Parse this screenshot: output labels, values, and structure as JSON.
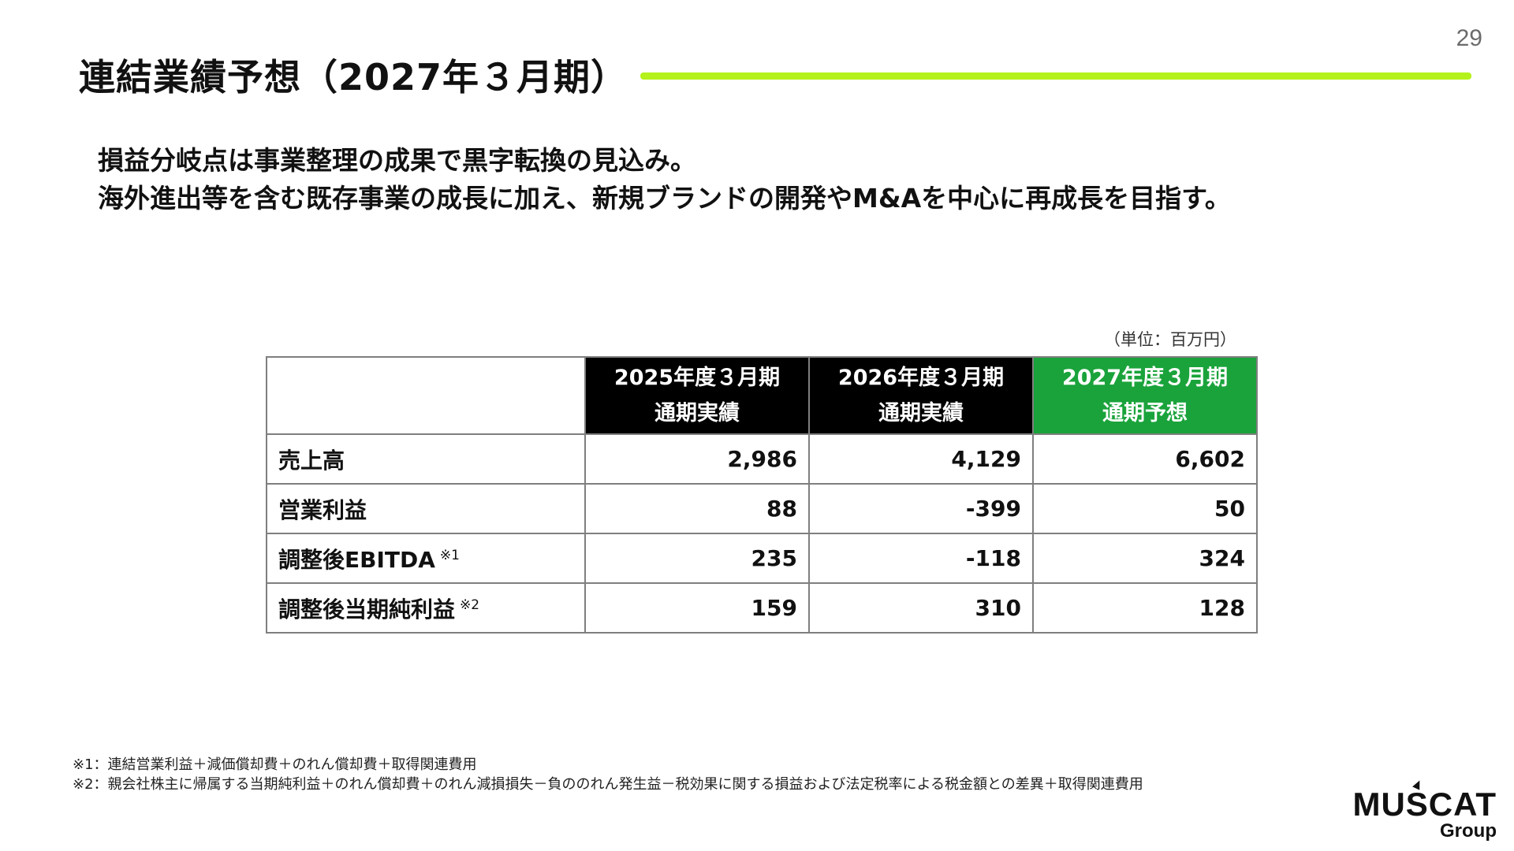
{
  "page_number": "29",
  "title": "連結業績予想（2027年３月期）",
  "lead": [
    "損益分岐点は事業整理の成果で黒字転換の見込み。",
    "海外進出等を含む既存事業の成長に加え、新規ブランドの開発やM&Aを中心に再成長を目指す。"
  ],
  "unit_label": "（単位：百万円）",
  "table": {
    "columns": [
      {
        "line1": "2025年度３月期",
        "line2": "通期実績"
      },
      {
        "line1": "2026年度３月期",
        "line2": "通期実績"
      },
      {
        "line1": "2027年度３月期",
        "line2": "通期予想"
      }
    ],
    "rows": [
      {
        "label": "売上高",
        "note": "",
        "values": [
          "2,986",
          "4,129",
          "6,602"
        ]
      },
      {
        "label": "営業利益",
        "note": "",
        "values": [
          "88",
          "-399",
          "50"
        ]
      },
      {
        "label": "調整後EBITDA",
        "note": "※1",
        "values": [
          "235",
          "-118",
          "324"
        ]
      },
      {
        "label": "調整後当期純利益",
        "note": "※2",
        "values": [
          "159",
          "310",
          "128"
        ]
      }
    ]
  },
  "footnotes": [
    "※1：連結営業利益＋減価償却費＋のれん償却費＋取得関連費用",
    "※2：親会社株主に帰属する当期純利益＋のれん償却費＋のれん減損損失－負ののれん発生益－税効果に関する損益および法定税率による税金額との差異＋取得関連費用"
  ],
  "logo": {
    "brand": "MUSCAT",
    "sub": "Group"
  },
  "colors": {
    "accent_rule": "#b5f21d",
    "forecast_header": "#1aa33b",
    "actual_header": "#000000"
  }
}
